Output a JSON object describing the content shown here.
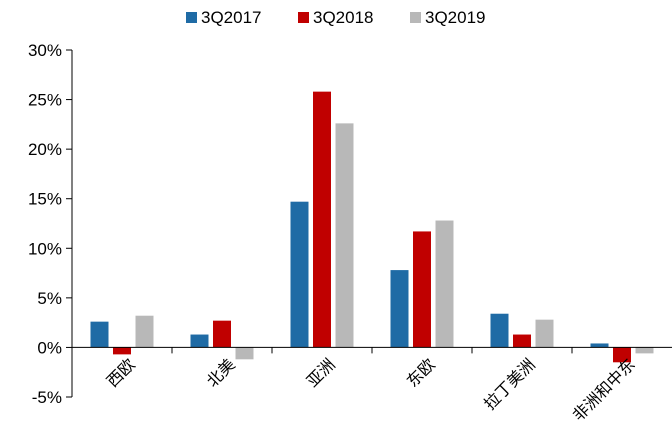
{
  "chart_data": {
    "type": "bar",
    "title": "",
    "xlabel": "",
    "ylabel": "",
    "categories": [
      "西欧",
      "北美",
      "亚洲",
      "东欧",
      "拉丁美洲",
      "非洲和中东"
    ],
    "series": [
      {
        "name": "3Q2017",
        "color": "#1f6ba5",
        "values": [
          2.6,
          1.3,
          14.7,
          7.8,
          3.4,
          0.4
        ]
      },
      {
        "name": "3Q2018",
        "color": "#c00000",
        "values": [
          -0.7,
          2.7,
          25.8,
          11.7,
          1.3,
          -1.5
        ]
      },
      {
        "name": "3Q2019",
        "color": "#b8b8b8",
        "values": [
          3.2,
          -1.2,
          22.6,
          12.8,
          2.8,
          -0.6
        ]
      }
    ],
    "ylim": [
      -5,
      30
    ],
    "yticks": [
      -5,
      0,
      5,
      10,
      15,
      20,
      25,
      30
    ],
    "ytick_labels": [
      "-5%",
      "0%",
      "5%",
      "10%",
      "15%",
      "20%",
      "25%",
      "30%"
    ],
    "grid": false,
    "legend_position": "top"
  }
}
